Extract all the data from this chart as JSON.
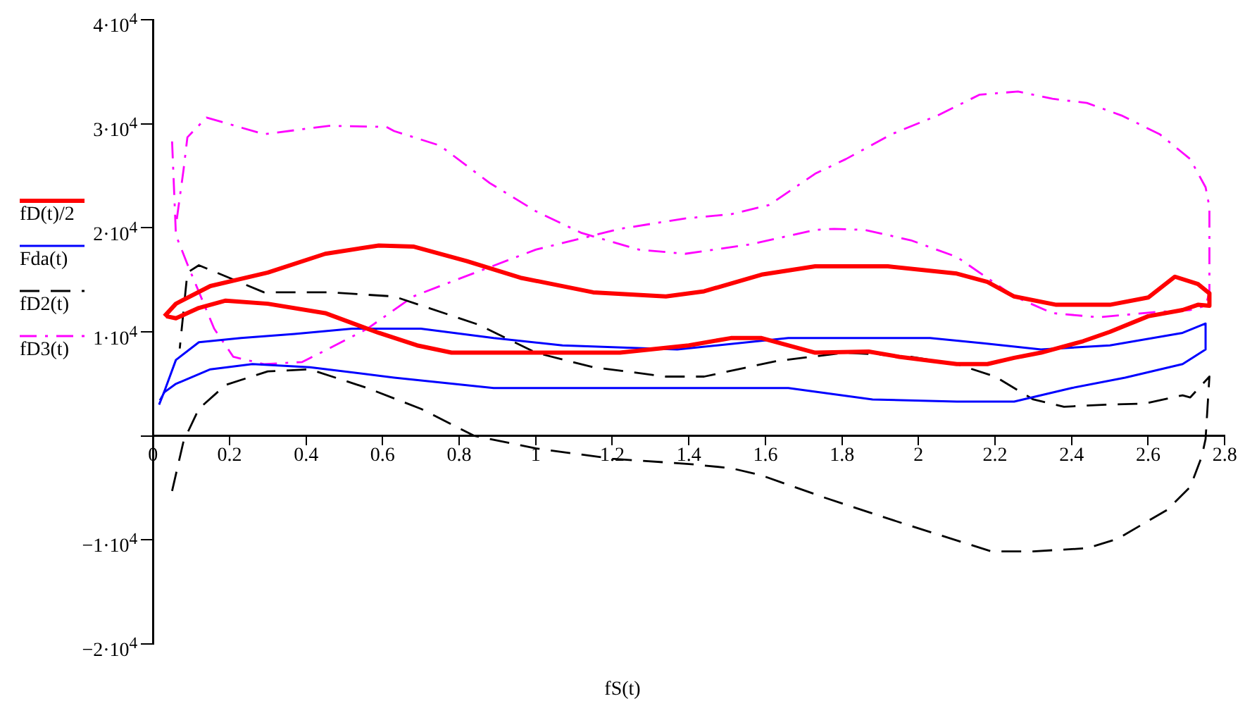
{
  "chart_data": {
    "type": "line",
    "xlabel": "fS(t)",
    "legend": "left",
    "marker": "none",
    "grid": false,
    "xlim": [
      0,
      2.8
    ],
    "ylim": [
      -20000,
      40000
    ],
    "xticks": [
      0,
      0.2,
      0.4,
      0.6,
      0.8,
      1,
      1.2,
      1.4,
      1.6,
      1.8,
      2,
      2.2,
      2.4,
      2.6,
      2.8
    ],
    "yticks": [
      {
        "value": -20000,
        "label": "−2·10$^{4}$"
      },
      {
        "value": -10000,
        "label": "−1·10$^{4}$"
      },
      {
        "value": 0,
        "label": null
      },
      {
        "value": 10000,
        "label": "1·10$^{4}$"
      },
      {
        "value": 20000,
        "label": "2·10$^{4}$"
      },
      {
        "value": 30000,
        "label": "3·10$^{4}$"
      },
      {
        "value": 40000,
        "label": "4·10$^{4}$"
      }
    ],
    "series": [
      {
        "name": "fD(t)/2",
        "color": "#ff0000",
        "line_style": "solid",
        "x": [
          0.03,
          0.06,
          0.15,
          0.3,
          0.45,
          0.59,
          0.68,
          0.82,
          0.96,
          1.15,
          1.34,
          1.44,
          1.59,
          1.73,
          1.92,
          2.1,
          2.18,
          2.25,
          2.36,
          2.5,
          2.6,
          2.67,
          2.73,
          2.76,
          2.76,
          2.73,
          2.69,
          2.6,
          2.5,
          2.43,
          2.32,
          2.25,
          2.18,
          2.1,
          1.95,
          1.87,
          1.73,
          1.59,
          1.51,
          1.4,
          1.22,
          1.07,
          0.78,
          0.69,
          0.59,
          0.45,
          0.3,
          0.19,
          0.12,
          0.06,
          0.035
        ],
        "values": [
          11500,
          12700,
          14400,
          15700,
          17500,
          18300,
          18200,
          16800,
          15200,
          13800,
          13400,
          13900,
          15500,
          16300,
          16300,
          15600,
          14800,
          13400,
          12600,
          12600,
          13300,
          15300,
          14600,
          13700,
          12500,
          12600,
          12100,
          11500,
          10000,
          9100,
          8000,
          7500,
          6900,
          6900,
          7600,
          8100,
          8000,
          9400,
          9400,
          8700,
          8000,
          8000,
          8000,
          8700,
          9900,
          11800,
          12700,
          13000,
          12300,
          11300,
          11500
        ]
      },
      {
        "name": "Fda(t)",
        "color": "#0000ff",
        "line_style": "solid",
        "x": [
          0.016,
          0.03,
          0.06,
          0.12,
          0.23,
          0.37,
          0.52,
          0.7,
          0.89,
          1.07,
          1.37,
          1.66,
          1.81,
          2.03,
          2.17,
          2.32,
          2.5,
          2.69,
          2.75,
          2.75,
          2.69,
          2.54,
          2.4,
          2.25,
          2.1,
          1.88,
          1.66,
          1.51,
          1.22,
          0.89,
          0.63,
          0.41,
          0.26,
          0.15,
          0.06,
          0.03,
          0.018
        ],
        "values": [
          3000,
          4300,
          7300,
          9000,
          9400,
          9800,
          10300,
          10300,
          9400,
          8700,
          8300,
          9400,
          9400,
          9400,
          8900,
          8300,
          8700,
          9900,
          10800,
          8300,
          6900,
          5600,
          4600,
          3300,
          3300,
          3500,
          4600,
          4600,
          4600,
          4600,
          5600,
          6600,
          6900,
          6400,
          5000,
          4200,
          3400
        ]
      },
      {
        "name": "fD2(t)",
        "color": "#000000",
        "line_style": "dashed",
        "x": [
          0.05,
          0.08,
          0.12,
          0.19,
          0.3,
          0.41,
          0.56,
          0.7,
          0.84,
          1.0,
          1.2,
          1.4,
          1.51,
          1.59,
          1.76,
          1.95,
          2.19,
          2.3,
          2.44,
          2.52,
          2.65,
          2.71,
          2.74,
          2.75,
          2.76,
          2.71,
          2.69,
          2.59,
          2.49,
          2.38,
          2.3,
          2.2,
          2.1,
          1.98,
          1.86,
          1.81,
          1.63,
          1.44,
          1.34,
          1.15,
          1.0,
          0.85,
          0.63,
          0.46,
          0.29,
          0.14,
          0.12,
          0.09,
          0.07
        ],
        "values": [
          -5300,
          -500,
          2600,
          4900,
          6200,
          6400,
          4600,
          2600,
          0,
          -1200,
          -2200,
          -2700,
          -3100,
          -3800,
          -6000,
          -8300,
          -11100,
          -11100,
          -10800,
          -9900,
          -7100,
          -4900,
          -2000,
          -300,
          5700,
          3700,
          3900,
          3100,
          3000,
          2800,
          3500,
          5700,
          6900,
          7600,
          7900,
          8000,
          7200,
          5700,
          5700,
          6600,
          8000,
          10700,
          13400,
          13800,
          13800,
          16100,
          16400,
          15700,
          8400
        ]
      },
      {
        "name": "fD3(t)",
        "color": "#ff00ff",
        "line_style": "dashdot",
        "x": [
          0.05,
          0.06,
          0.09,
          0.16,
          0.21,
          0.29,
          0.39,
          0.46,
          0.56,
          0.68,
          0.75,
          1.0,
          1.22,
          1.39,
          1.51,
          1.61,
          1.73,
          1.81,
          1.93,
          2.05,
          2.16,
          2.26,
          2.35,
          2.44,
          2.53,
          2.63,
          2.71,
          2.75,
          2.76,
          2.76,
          2.75,
          2.71,
          2.62,
          2.47,
          2.35,
          2.25,
          2.1,
          1.98,
          1.86,
          1.78,
          1.73,
          1.56,
          1.39,
          1.27,
          1.12,
          1.0,
          0.88,
          0.75,
          0.63,
          0.61,
          0.46,
          0.29,
          0.14,
          0.09,
          0.08,
          0.06
        ],
        "values": [
          28300,
          19300,
          16500,
          10300,
          7600,
          6900,
          7100,
          8400,
          10300,
          13400,
          14400,
          17900,
          19900,
          20900,
          21300,
          22200,
          25200,
          26600,
          29000,
          30800,
          32800,
          33100,
          32400,
          32000,
          30800,
          29000,
          26600,
          23900,
          22000,
          13800,
          12500,
          12100,
          11900,
          11400,
          11800,
          13400,
          17200,
          18800,
          19800,
          19900,
          19800,
          18400,
          17500,
          17900,
          19500,
          21600,
          24300,
          27900,
          29300,
          29700,
          29800,
          29000,
          30600,
          28700,
          25600,
          20200
        ]
      }
    ]
  }
}
